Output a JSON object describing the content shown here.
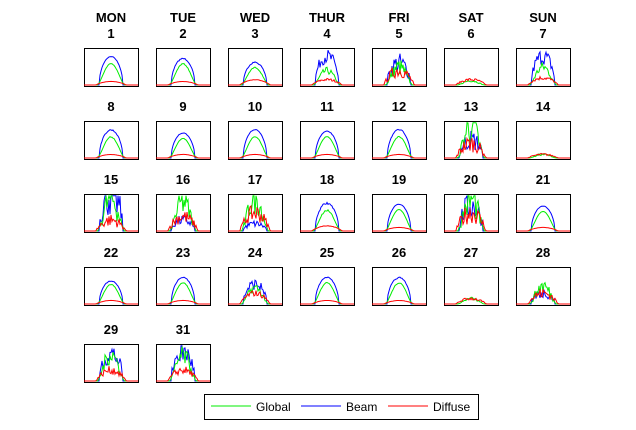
{
  "chart_data": {
    "type": "line",
    "title": "",
    "weekdays": [
      "MON",
      "TUE",
      "WED",
      "THUR",
      "FRI",
      "SAT",
      "SUN"
    ],
    "legend": {
      "position": "bottom-center",
      "entries": [
        {
          "name": "Global",
          "color": "#00ee00"
        },
        {
          "name": "Beam",
          "color": "#0000ff"
        },
        {
          "name": "Diffuse",
          "color": "#ff0000"
        }
      ]
    },
    "days": [
      {
        "day": "1",
        "beam": 0.8,
        "global": 0.6,
        "diffuse": 0.1,
        "noise": 0.02
      },
      {
        "day": "2",
        "beam": 0.75,
        "global": 0.6,
        "diffuse": 0.1,
        "noise": 0.04
      },
      {
        "day": "3",
        "beam": 0.65,
        "global": 0.5,
        "diffuse": 0.15,
        "noise": 0.06
      },
      {
        "day": "4",
        "beam": 0.8,
        "global": 0.4,
        "diffuse": 0.15,
        "noise": 0.25
      },
      {
        "day": "5",
        "beam": 0.6,
        "global": 0.5,
        "diffuse": 0.4,
        "noise": 0.5
      },
      {
        "day": "6",
        "beam": 0.0,
        "global": 0.12,
        "diffuse": 0.15,
        "noise": 0.3
      },
      {
        "day": "7",
        "beam": 0.8,
        "global": 0.5,
        "diffuse": 0.2,
        "noise": 0.3
      },
      {
        "day": "8",
        "beam": 0.8,
        "global": 0.6,
        "diffuse": 0.1,
        "noise": 0.05
      },
      {
        "day": "9",
        "beam": 0.7,
        "global": 0.55,
        "diffuse": 0.1,
        "noise": 0.02
      },
      {
        "day": "10",
        "beam": 0.8,
        "global": 0.6,
        "diffuse": 0.1,
        "noise": 0.03
      },
      {
        "day": "11",
        "beam": 0.75,
        "global": 0.6,
        "diffuse": 0.1,
        "noise": 0.02
      },
      {
        "day": "12",
        "beam": 0.8,
        "global": 0.6,
        "diffuse": 0.1,
        "noise": 0.04
      },
      {
        "day": "13",
        "beam": 0.5,
        "global": 0.9,
        "diffuse": 0.4,
        "noise": 0.6
      },
      {
        "day": "14",
        "beam": 0.0,
        "global": 0.1,
        "diffuse": 0.1,
        "noise": 0.3
      },
      {
        "day": "15",
        "beam": 1.0,
        "global": 0.9,
        "diffuse": 0.3,
        "noise": 0.6
      },
      {
        "day": "16",
        "beam": 0.3,
        "global": 0.8,
        "diffuse": 0.4,
        "noise": 0.5
      },
      {
        "day": "17",
        "beam": 0.2,
        "global": 0.9,
        "diffuse": 0.5,
        "noise": 0.5
      },
      {
        "day": "18",
        "beam": 0.8,
        "global": 0.6,
        "diffuse": 0.15,
        "noise": 0.08
      },
      {
        "day": "19",
        "beam": 0.75,
        "global": 0.6,
        "diffuse": 0.1,
        "noise": 0.02
      },
      {
        "day": "20",
        "beam": 0.7,
        "global": 0.9,
        "diffuse": 0.5,
        "noise": 0.6
      },
      {
        "day": "21",
        "beam": 0.7,
        "global": 0.55,
        "diffuse": 0.1,
        "noise": 0.02
      },
      {
        "day": "22",
        "beam": 0.65,
        "global": 0.55,
        "diffuse": 0.1,
        "noise": 0.03
      },
      {
        "day": "23",
        "beam": 0.75,
        "global": 0.6,
        "diffuse": 0.1,
        "noise": 0.03
      },
      {
        "day": "24",
        "beam": 0.55,
        "global": 0.45,
        "diffuse": 0.3,
        "noise": 0.3
      },
      {
        "day": "25",
        "beam": 0.75,
        "global": 0.6,
        "diffuse": 0.1,
        "noise": 0.03
      },
      {
        "day": "26",
        "beam": 0.75,
        "global": 0.6,
        "diffuse": 0.1,
        "noise": 0.05
      },
      {
        "day": "27",
        "beam": 0.0,
        "global": 0.15,
        "diffuse": 0.15,
        "noise": 0.3
      },
      {
        "day": "28",
        "beam": 0.3,
        "global": 0.5,
        "diffuse": 0.3,
        "noise": 0.5
      },
      {
        "day": "29",
        "beam": 0.75,
        "global": 0.75,
        "diffuse": 0.3,
        "noise": 0.4
      },
      {
        "day": "31",
        "beam": 0.8,
        "global": 0.7,
        "diffuse": 0.3,
        "noise": 0.4
      }
    ]
  }
}
